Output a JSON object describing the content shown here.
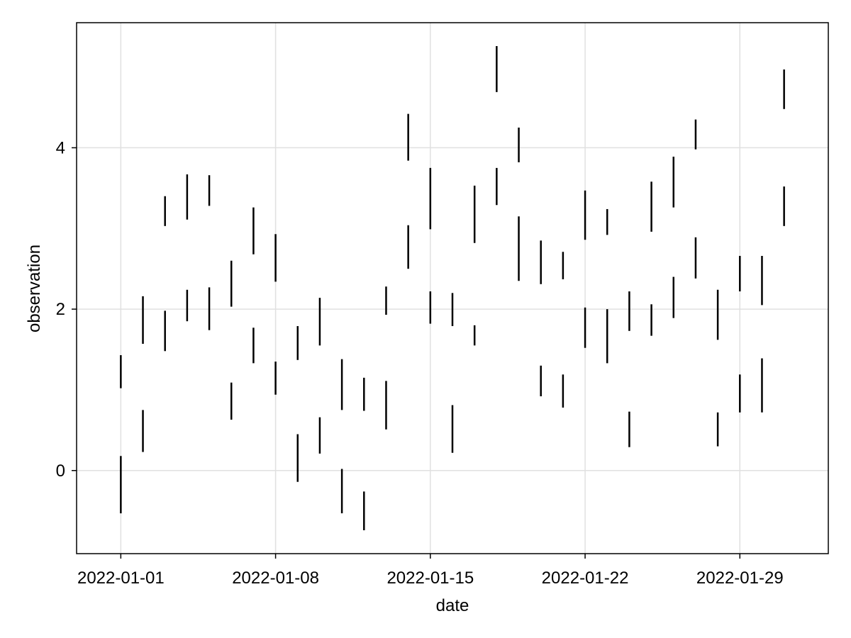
{
  "chart_data": {
    "type": "rangebar",
    "title": "",
    "xlabel": "date",
    "ylabel": "observation",
    "x_ticks": [
      "2022-01-01",
      "2022-01-08",
      "2022-01-15",
      "2022-01-22",
      "2022-01-29"
    ],
    "y_ticks": [
      0,
      2,
      4
    ],
    "xlim": [
      "2021-12-30",
      "2022-02-02"
    ],
    "ylim": [
      -1.03,
      5.55
    ],
    "grid": true,
    "legend": "none",
    "colors": {
      "series": "#000000",
      "grid": "#e0e0e0",
      "frame": "#000000",
      "background": "#ffffff"
    },
    "series": [
      {
        "values": [
          {
            "date": "2022-01-01",
            "low": -0.53,
            "high": 0.18
          },
          {
            "date": "2022-01-01",
            "low": 1.02,
            "high": 1.43
          },
          {
            "date": "2022-01-02",
            "low": 0.23,
            "high": 0.75
          },
          {
            "date": "2022-01-02",
            "low": 1.57,
            "high": 2.16
          },
          {
            "date": "2022-01-03",
            "low": 1.48,
            "high": 1.98
          },
          {
            "date": "2022-01-03",
            "low": 3.03,
            "high": 3.4
          },
          {
            "date": "2022-01-04",
            "low": 1.85,
            "high": 2.24
          },
          {
            "date": "2022-01-04",
            "low": 3.11,
            "high": 3.67
          },
          {
            "date": "2022-01-05",
            "low": 1.74,
            "high": 2.27
          },
          {
            "date": "2022-01-05",
            "low": 3.28,
            "high": 3.66
          },
          {
            "date": "2022-01-06",
            "low": 0.63,
            "high": 1.09
          },
          {
            "date": "2022-01-06",
            "low": 2.03,
            "high": 2.6
          },
          {
            "date": "2022-01-07",
            "low": 1.33,
            "high": 1.77
          },
          {
            "date": "2022-01-07",
            "low": 2.68,
            "high": 3.26
          },
          {
            "date": "2022-01-08",
            "low": 0.94,
            "high": 1.35
          },
          {
            "date": "2022-01-08",
            "low": 2.34,
            "high": 2.93
          },
          {
            "date": "2022-01-09",
            "low": -0.14,
            "high": 0.45
          },
          {
            "date": "2022-01-09",
            "low": 1.37,
            "high": 1.79
          },
          {
            "date": "2022-01-10",
            "low": 0.21,
            "high": 0.66
          },
          {
            "date": "2022-01-10",
            "low": 1.55,
            "high": 2.14
          },
          {
            "date": "2022-01-11",
            "low": -0.53,
            "high": 0.02
          },
          {
            "date": "2022-01-11",
            "low": 0.75,
            "high": 1.38
          },
          {
            "date": "2022-01-12",
            "low": -0.74,
            "high": -0.26
          },
          {
            "date": "2022-01-12",
            "low": 0.74,
            "high": 1.15
          },
          {
            "date": "2022-01-13",
            "low": 0.51,
            "high": 1.11
          },
          {
            "date": "2022-01-13",
            "low": 1.93,
            "high": 2.28
          },
          {
            "date": "2022-01-14",
            "low": 2.5,
            "high": 3.04
          },
          {
            "date": "2022-01-14",
            "low": 3.84,
            "high": 4.42
          },
          {
            "date": "2022-01-15",
            "low": 1.82,
            "high": 2.22
          },
          {
            "date": "2022-01-15",
            "low": 2.99,
            "high": 3.75
          },
          {
            "date": "2022-01-16",
            "low": 0.22,
            "high": 0.81
          },
          {
            "date": "2022-01-16",
            "low": 1.79,
            "high": 2.2
          },
          {
            "date": "2022-01-17",
            "low": 1.55,
            "high": 1.8
          },
          {
            "date": "2022-01-17",
            "low": 2.82,
            "high": 3.53
          },
          {
            "date": "2022-01-18",
            "low": 3.29,
            "high": 3.75
          },
          {
            "date": "2022-01-18",
            "low": 4.69,
            "high": 5.26
          },
          {
            "date": "2022-01-19",
            "low": 2.35,
            "high": 3.15
          },
          {
            "date": "2022-01-19",
            "low": 3.82,
            "high": 4.25
          },
          {
            "date": "2022-01-20",
            "low": 0.92,
            "high": 1.3
          },
          {
            "date": "2022-01-20",
            "low": 2.31,
            "high": 2.85
          },
          {
            "date": "2022-01-21",
            "low": 0.78,
            "high": 1.19
          },
          {
            "date": "2022-01-21",
            "low": 2.37,
            "high": 2.71
          },
          {
            "date": "2022-01-22",
            "low": 1.52,
            "high": 2.02
          },
          {
            "date": "2022-01-22",
            "low": 2.86,
            "high": 3.47
          },
          {
            "date": "2022-01-23",
            "low": 1.33,
            "high": 2.0
          },
          {
            "date": "2022-01-23",
            "low": 2.92,
            "high": 3.24
          },
          {
            "date": "2022-01-24",
            "low": 0.29,
            "high": 0.73
          },
          {
            "date": "2022-01-24",
            "low": 1.73,
            "high": 2.22
          },
          {
            "date": "2022-01-25",
            "low": 1.67,
            "high": 2.06
          },
          {
            "date": "2022-01-25",
            "low": 2.96,
            "high": 3.58
          },
          {
            "date": "2022-01-26",
            "low": 1.89,
            "high": 2.4
          },
          {
            "date": "2022-01-26",
            "low": 3.26,
            "high": 3.89
          },
          {
            "date": "2022-01-27",
            "low": 2.38,
            "high": 2.89
          },
          {
            "date": "2022-01-27",
            "low": 3.98,
            "high": 4.35
          },
          {
            "date": "2022-01-28",
            "low": 0.3,
            "high": 0.72
          },
          {
            "date": "2022-01-28",
            "low": 1.62,
            "high": 2.24
          },
          {
            "date": "2022-01-29",
            "low": 0.72,
            "high": 1.19
          },
          {
            "date": "2022-01-29",
            "low": 2.22,
            "high": 2.66
          },
          {
            "date": "2022-01-30",
            "low": 0.72,
            "high": 1.39
          },
          {
            "date": "2022-01-30",
            "low": 2.05,
            "high": 2.66
          },
          {
            "date": "2022-01-31",
            "low": 3.03,
            "high": 3.52
          },
          {
            "date": "2022-01-31",
            "low": 4.48,
            "high": 4.97
          }
        ]
      }
    ]
  }
}
